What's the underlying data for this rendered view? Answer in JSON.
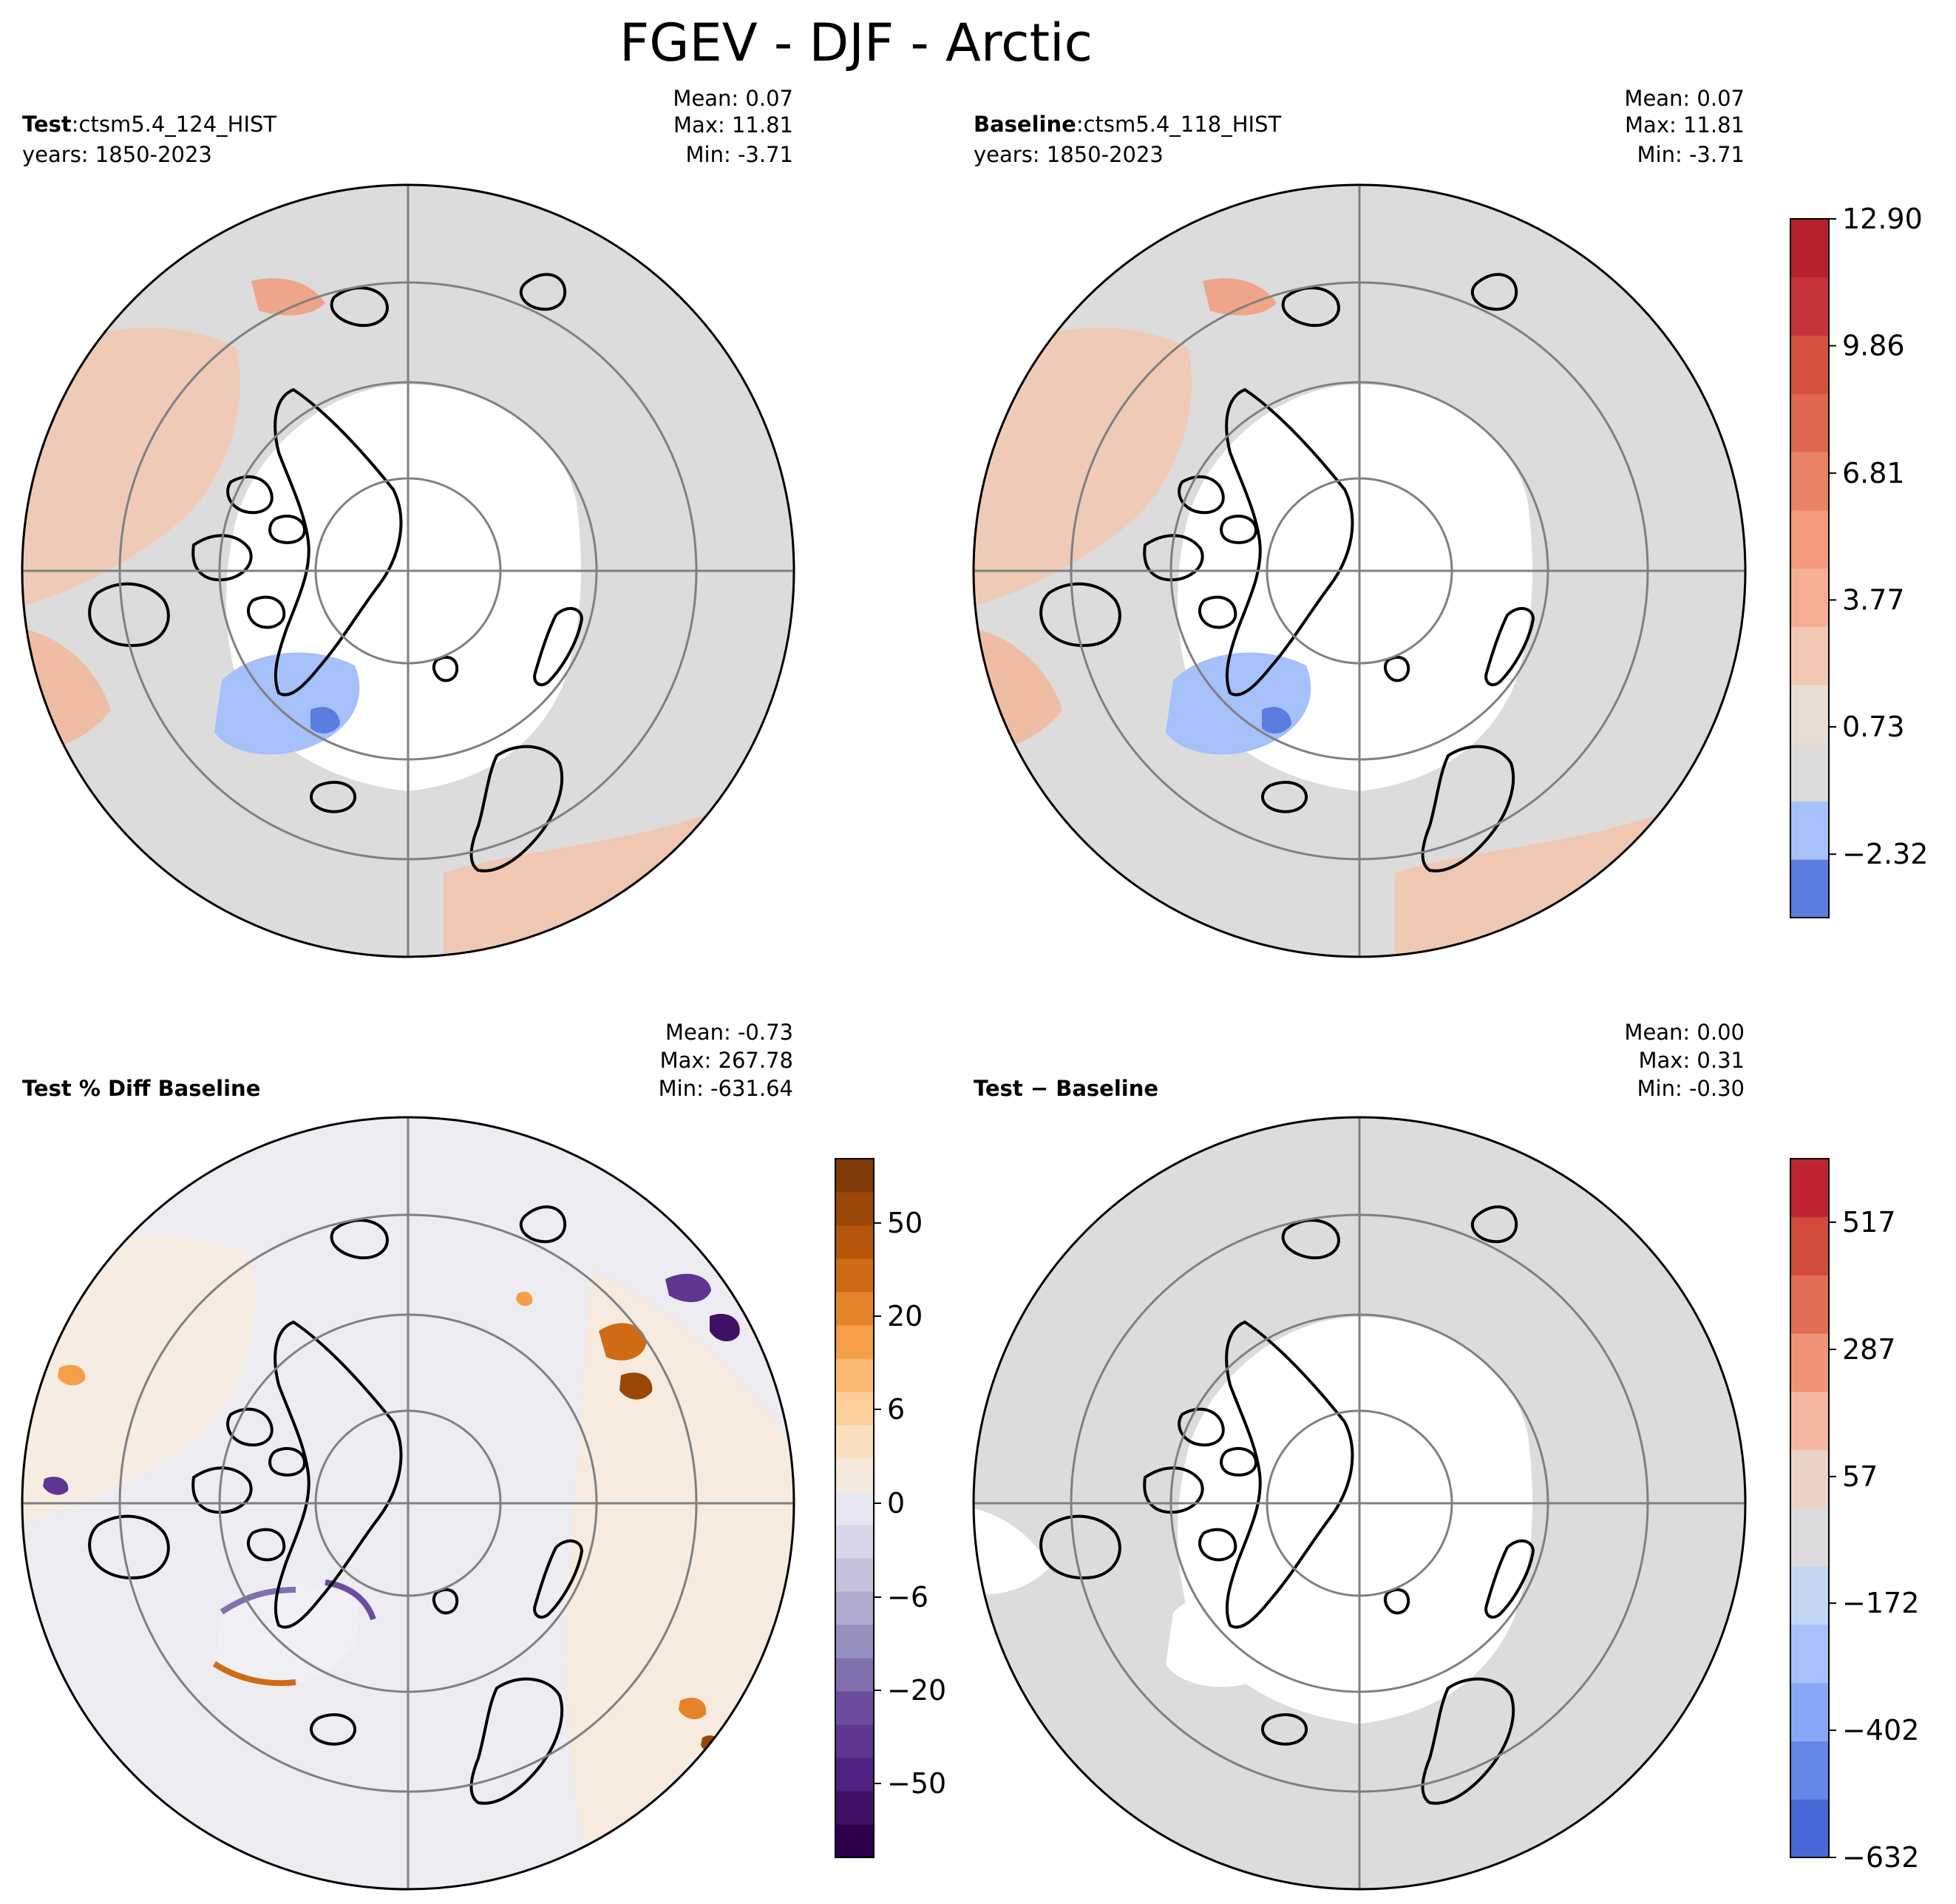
{
  "figure_title": "FGEV - DJF - Arctic",
  "chart_data": [
    {
      "type": "polar_map",
      "panel": "test",
      "header_bold": "Test",
      "header_sep": ":",
      "case": "ctsm5.4_124_HIST",
      "years": "years: 1850-2023",
      "stats": {
        "mean": "Mean:  0.07",
        "max": "Max: 11.81",
        "min": "Min: -3.71"
      },
      "values": {
        "mean": 0.07,
        "max": 11.81,
        "min": -3.71
      }
    },
    {
      "type": "polar_map",
      "panel": "baseline",
      "header_bold": "Baseline",
      "header_sep": ":",
      "case": "ctsm5.4_118_HIST",
      "years": "years: 1850-2023",
      "stats": {
        "mean": "Mean:  0.07",
        "max": "Max: 11.81",
        "min": "Min: -3.71"
      },
      "values": {
        "mean": 0.07,
        "max": 11.81,
        "min": -3.71
      },
      "colorbar": {
        "ticks": [
          "12.90",
          "9.86",
          "6.81",
          "3.77",
          "0.73",
          "−2.32"
        ],
        "tick_values": [
          12.9,
          9.86,
          6.81,
          3.77,
          0.73,
          -2.32
        ],
        "range": [
          -3.84,
          12.9
        ],
        "colors": [
          "#5b7de0",
          "#a6c0fa",
          "#dcdcdc",
          "#e9dcd3",
          "#f3c8b2",
          "#f6ae92",
          "#f19a7c",
          "#ea8266",
          "#e0674f",
          "#d4513f",
          "#c7333a",
          "#b81f2c"
        ]
      }
    },
    {
      "type": "polar_map",
      "panel": "percent_diff",
      "header_bold": "Test % Diff Baseline",
      "stats": {
        "mean": "Mean: -0.73",
        "max": "Max: 267.78",
        "min": "Min: -631.64"
      },
      "values": {
        "mean": -0.73,
        "max": 267.78,
        "min": -631.64
      },
      "colorbar": {
        "ticks": [
          "50",
          "20",
          "6",
          "0",
          "−6",
          "−20",
          "−50"
        ],
        "tick_values": [
          50,
          20,
          6,
          0,
          -6,
          -20,
          -50
        ],
        "colors": [
          "#2d004b",
          "#3f1166",
          "#4f2180",
          "#5e3590",
          "#6c4c9e",
          "#8070ad",
          "#9690c0",
          "#aeaad0",
          "#c5c2de",
          "#d8d6e8",
          "#e8e7f1",
          "#f5eadd",
          "#fbe0c0",
          "#fdcf99",
          "#fbb972",
          "#f59f48",
          "#e5852a",
          "#cf6b14",
          "#b5560a",
          "#984707",
          "#7f3b08"
        ]
      }
    },
    {
      "type": "polar_map",
      "panel": "difference",
      "header_bold": "Test − Baseline",
      "stats": {
        "mean": "Mean:  0.00",
        "max": "Max:  0.31",
        "min": "Min: -0.30"
      },
      "values": {
        "mean": 0.0,
        "max": 0.31,
        "min": -0.3
      },
      "colorbar": {
        "ticks": [
          "517",
          "287",
          "57",
          "−172",
          "−402",
          "−632"
        ],
        "tick_values": [
          517,
          287,
          57,
          -172,
          -402,
          -632
        ],
        "range": [
          -632,
          632
        ],
        "colors": [
          "#4a69d8",
          "#6488e8",
          "#86a8f6",
          "#a7c2fb",
          "#c3d5f3",
          "#dcdcdc",
          "#ead4c7",
          "#f4b9a0",
          "#ef9478",
          "#e36e56",
          "#d24b3d",
          "#be2430"
        ]
      }
    }
  ],
  "colors": {
    "land_gray": "#dcdcdc",
    "pct_bg": "#ececf1",
    "ocean": "#ffffff",
    "grid": "#808080",
    "coast": "#000000"
  }
}
